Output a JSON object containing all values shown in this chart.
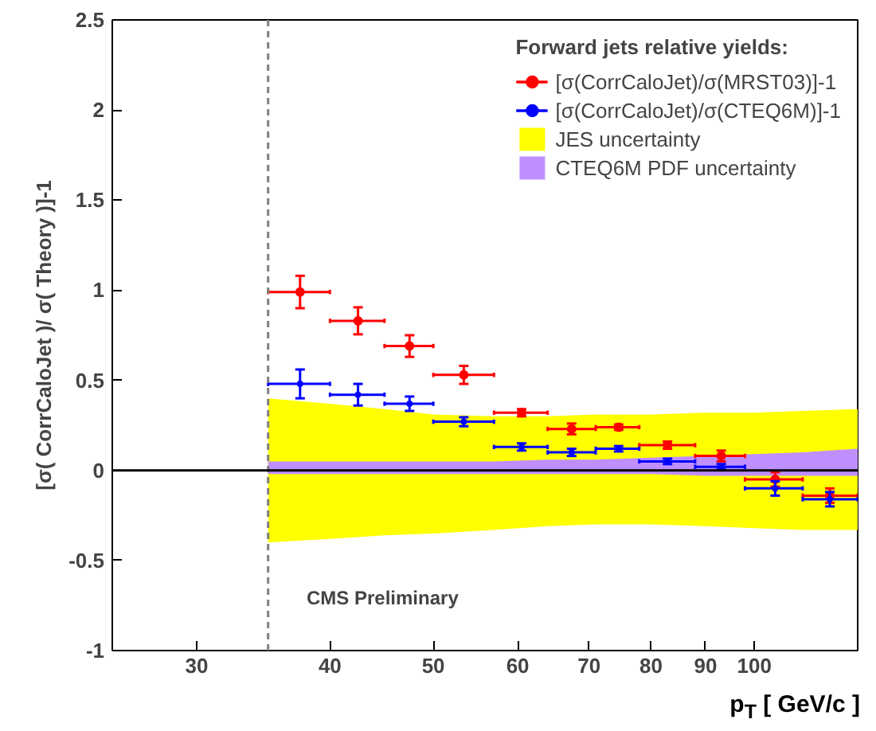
{
  "chart_data": {
    "type": "scatter",
    "xlabel": "p$_{T}$ [ GeV/c ]",
    "ylabel": "[σ( CorrCaloJet )/ σ( Theory )]-1",
    "legend_title": "Forward jets relative yields:",
    "legend": "top right",
    "log": "x",
    "grid": false,
    "xlim": [
      25,
      125
    ],
    "xticks": [
      30,
      40,
      50,
      60,
      70,
      80,
      90,
      100
    ],
    "ylim": [
      -1,
      2.5
    ],
    "yticks": [
      -1,
      -0.5,
      0,
      0.5,
      1,
      1.5,
      2,
      2.5
    ],
    "series": [
      {
        "name": "JES uncertainty",
        "type": "line",
        "color": "#ffff00",
        "x": [
          35,
          40,
          45,
          50,
          57,
          64,
          71,
          80,
          90,
          100,
          111,
          125
        ],
        "values": [
          null,
          null,
          null,
          null,
          null,
          null,
          null,
          null,
          null,
          null,
          null,
          null
        ],
        "upper": [
          0.4,
          0.37,
          0.34,
          0.31,
          0.3,
          0.3,
          0.31,
          0.31,
          0.32,
          0.32,
          0.33,
          0.34
        ],
        "lower": [
          -0.4,
          -0.38,
          -0.36,
          -0.35,
          -0.33,
          -0.31,
          -0.3,
          -0.3,
          -0.31,
          -0.32,
          -0.33,
          -0.33
        ]
      },
      {
        "name": "CTEQ6M PDF uncertainty",
        "type": "line",
        "color": "#bf8fff",
        "x": [
          35,
          40,
          45,
          50,
          57,
          64,
          71,
          80,
          90,
          100,
          111,
          125
        ],
        "values": [
          null,
          null,
          null,
          null,
          null,
          null,
          null,
          null,
          null,
          null,
          null,
          null
        ],
        "upper": [
          0.05,
          0.05,
          0.05,
          0.05,
          0.05,
          0.06,
          0.06,
          0.07,
          0.08,
          0.09,
          0.1,
          0.12
        ],
        "lower": [
          -0.02,
          -0.02,
          -0.02,
          -0.02,
          -0.02,
          -0.02,
          -0.02,
          -0.02,
          -0.03,
          -0.03,
          -0.03,
          -0.03
        ]
      },
      {
        "name": "[σ(CorrCaloJet)/σ(MRST03)]-1",
        "color": "#ff0000",
        "marker": "circle",
        "x": [
          37.5,
          42.5,
          47.5,
          53.4,
          60.5,
          67.4,
          74.6,
          82.9,
          93.1,
          104.6,
          117.7
        ],
        "values": [
          0.99,
          0.83,
          0.69,
          0.53,
          0.32,
          0.23,
          0.24,
          0.14,
          0.08,
          -0.05,
          -0.14
        ],
        "errors": [
          0.09,
          0.075,
          0.06,
          0.05,
          0.02,
          0.03,
          0.015,
          0.02,
          0.03,
          0.04,
          0.04
        ],
        "xerrors": [
          [
            35,
            40
          ],
          [
            40,
            45
          ],
          [
            45,
            50
          ],
          [
            50,
            57
          ],
          [
            57,
            64
          ],
          [
            64,
            71
          ],
          [
            71,
            78
          ],
          [
            78,
            88
          ],
          [
            88,
            98
          ],
          [
            98,
            111
          ],
          [
            111,
            125
          ]
        ]
      },
      {
        "name": "[σ(CorrCaloJet)/σ(CTEQ6M)]-1",
        "color": "#0000ff",
        "marker": "circle",
        "x": [
          37.5,
          42.5,
          47.5,
          53.4,
          60.5,
          67.4,
          74.6,
          82.9,
          93.1,
          104.6,
          117.7
        ],
        "values": [
          0.48,
          0.42,
          0.37,
          0.27,
          0.13,
          0.1,
          0.12,
          0.05,
          0.02,
          -0.1,
          -0.16
        ],
        "errors": [
          0.08,
          0.06,
          0.04,
          0.025,
          0.02,
          0.02,
          0.015,
          0.015,
          0.015,
          0.04,
          0.04
        ],
        "xerrors": [
          [
            35,
            40
          ],
          [
            40,
            45
          ],
          [
            45,
            50
          ],
          [
            50,
            57
          ],
          [
            57,
            64
          ],
          [
            64,
            71
          ],
          [
            71,
            78
          ],
          [
            78,
            88
          ],
          [
            88,
            98
          ],
          [
            98,
            111
          ],
          [
            111,
            125
          ]
        ]
      }
    ],
    "ref_lines": [
      {
        "axis": "x",
        "value": 35,
        "color": "#808080",
        "line_style": "dashed"
      },
      {
        "axis": "y",
        "value": 0,
        "color": "#000000",
        "line_style": "solid"
      }
    ],
    "annotations": [
      "CMS Preliminary"
    ]
  }
}
